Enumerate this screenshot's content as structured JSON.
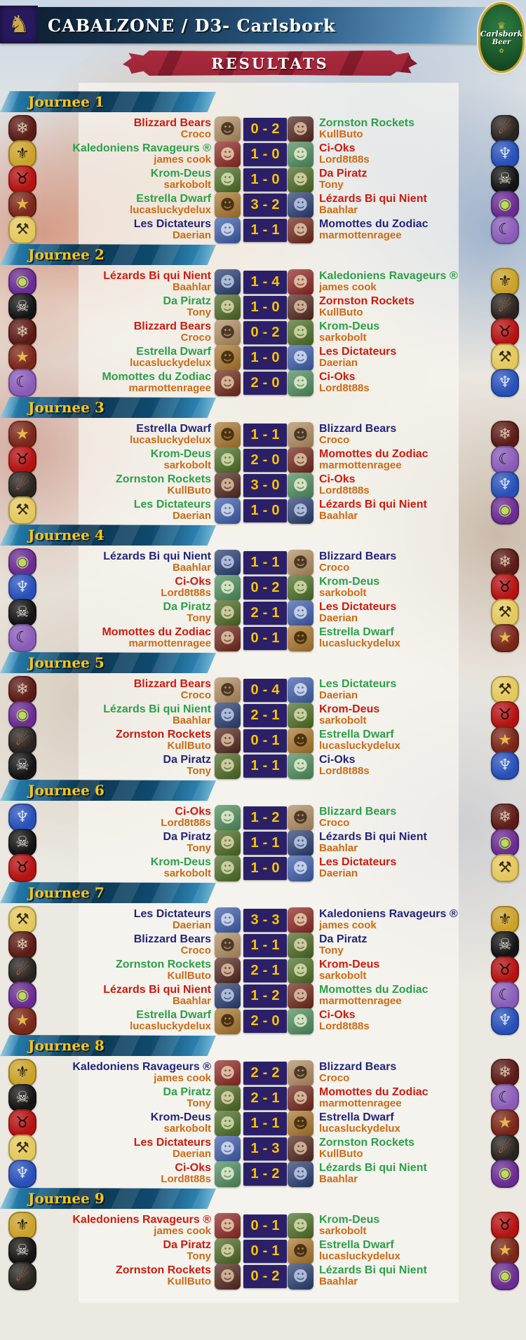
{
  "header": {
    "title": "CABALZONE / D3- Carlsbork",
    "results_banner": "RESULTATS"
  },
  "sponsor": {
    "name": "Carlsbork",
    "product": "Beer"
  },
  "labels": {
    "score_separator": "-"
  },
  "icons": {
    "league_logo_glyph": "♞",
    "crown_glyph": "♛",
    "hop_glyph": "✿",
    "portrait_glyph": "☻"
  },
  "colors": {
    "winner_text": "#2ca04a",
    "loser_text": "#cf1a0e",
    "draw_text": "#24247a",
    "coach_text": "#cf6a14",
    "score_box_bg": "#2b2068",
    "score_text": "#fcc400",
    "round_banner_text": "#fcc412",
    "results_ribbon_bg": "#a72b3d"
  },
  "teams": {
    "Blizzard Bears": {
      "logo_icon": "bear-icon",
      "logo_glyph": "❄",
      "logo_bg": "#5c1a16",
      "logo_fg": "#d8c3a8",
      "portrait_bg": "#b08a5e",
      "portrait_fg": "#3a2a18"
    },
    "Kaledoniens Ravageurs ®": {
      "logo_icon": "hawk-icon",
      "logo_glyph": "⚜",
      "logo_bg": "#caa22a",
      "logo_fg": "#2a1f08",
      "portrait_bg": "#8a2420",
      "portrait_fg": "#e8d0b0"
    },
    "Krom-Deus": {
      "logo_icon": "bull-skull-icon",
      "logo_glyph": "♉",
      "logo_bg": "#b51212",
      "logo_fg": "#1a0a0a",
      "portrait_bg": "#4a6b22",
      "portrait_fg": "#d8e0b0"
    },
    "Estrella Dwarf": {
      "logo_icon": "star-crest-icon",
      "logo_glyph": "★",
      "logo_bg": "#7a2618",
      "logo_fg": "#e8b84a",
      "portrait_bg": "#a8742a",
      "portrait_fg": "#3a2408"
    },
    "Les Dictateurs": {
      "logo_icon": "crossed-keys-icon",
      "logo_glyph": "⚒",
      "logo_bg": "#e3c85e",
      "logo_fg": "#3a2c08",
      "portrait_bg": "#3a5aa8",
      "portrait_fg": "#d8e0f0"
    },
    "Zornston Rockets": {
      "logo_icon": "rocket-ball-icon",
      "logo_glyph": "☄",
      "logo_bg": "#2a2420",
      "logo_fg": "#d86a1c",
      "portrait_bg": "#50241c",
      "portrait_fg": "#e0c0a0"
    },
    "Ci-Oks": {
      "logo_icon": "blue-dragon-icon",
      "logo_glyph": "♆",
      "logo_bg": "#2850b8",
      "logo_fg": "#cfe2ff",
      "portrait_bg": "#4a8a5a",
      "portrait_fg": "#e8f0d0"
    },
    "Da Piratz": {
      "logo_icon": "pirate-skull-icon",
      "logo_glyph": "☠",
      "logo_bg": "#141414",
      "logo_fg": "#e8e4d8",
      "portrait_bg": "#49661e",
      "portrait_fg": "#e0d8b0"
    },
    "Lézards Bi qui Nient": {
      "logo_icon": "eye-icon",
      "logo_glyph": "◉",
      "logo_bg": "#6a2c92",
      "logo_fg": "#b8e04a",
      "portrait_bg": "#253a6e",
      "portrait_fg": "#c0cde8"
    },
    "Momottes du Zodiac": {
      "logo_icon": "bat-icon",
      "logo_glyph": "☾",
      "logo_bg": "#8a5cb8",
      "logo_fg": "#201028",
      "portrait_bg": "#6e2418",
      "portrait_fg": "#e0c8a8"
    }
  },
  "rounds": [
    {
      "label": "Journee 1",
      "matches": [
        {
          "home": "Blizzard Bears",
          "home_coach": "Croco",
          "home_score": 0,
          "away_score": 2,
          "away": "Zornston Rockets",
          "away_coach": "KullButo"
        },
        {
          "home": "Kaledoniens Ravageurs ®",
          "home_coach": "james cook",
          "home_score": 1,
          "away_score": 0,
          "away": "Ci-Oks",
          "away_coach": "Lord8t88s"
        },
        {
          "home": "Krom-Deus",
          "home_coach": "sarkobolt",
          "home_score": 1,
          "away_score": 0,
          "away": "Da Piratz",
          "away_coach": "Tony"
        },
        {
          "home": "Estrella Dwarf",
          "home_coach": "lucasluckydelux",
          "home_score": 3,
          "away_score": 2,
          "away": "Lézards Bi qui Nient",
          "away_coach": "Baahlar"
        },
        {
          "home": "Les Dictateurs",
          "home_coach": "Daerian",
          "home_score": 1,
          "away_score": 1,
          "away": "Momottes du Zodiac",
          "away_coach": "marmottenragee"
        }
      ]
    },
    {
      "label": "Journee 2",
      "matches": [
        {
          "home": "Lézards Bi qui Nient",
          "home_coach": "Baahlar",
          "home_score": 1,
          "away_score": 4,
          "away": "Kaledoniens Ravageurs ®",
          "away_coach": "james cook"
        },
        {
          "home": "Da Piratz",
          "home_coach": "Tony",
          "home_score": 1,
          "away_score": 0,
          "away": "Zornston Rockets",
          "away_coach": "KullButo"
        },
        {
          "home": "Blizzard Bears",
          "home_coach": "Croco",
          "home_score": 0,
          "away_score": 2,
          "away": "Krom-Deus",
          "away_coach": "sarkobolt"
        },
        {
          "home": "Estrella Dwarf",
          "home_coach": "lucasluckydelux",
          "home_score": 1,
          "away_score": 0,
          "away": "Les Dictateurs",
          "away_coach": "Daerian"
        },
        {
          "home": "Momottes du Zodiac",
          "home_coach": "marmottenragee",
          "home_score": 2,
          "away_score": 0,
          "away": "Ci-Oks",
          "away_coach": "Lord8t88s"
        }
      ]
    },
    {
      "label": "Journee 3",
      "matches": [
        {
          "home": "Estrella Dwarf",
          "home_coach": "lucasluckydelux",
          "home_score": 1,
          "away_score": 1,
          "away": "Blizzard Bears",
          "away_coach": "Croco"
        },
        {
          "home": "Krom-Deus",
          "home_coach": "sarkobolt",
          "home_score": 2,
          "away_score": 0,
          "away": "Momottes du Zodiac",
          "away_coach": "marmottenragee"
        },
        {
          "home": "Zornston Rockets",
          "home_coach": "KullButo",
          "home_score": 3,
          "away_score": 0,
          "away": "Ci-Oks",
          "away_coach": "Lord8t88s"
        },
        {
          "home": "Les Dictateurs",
          "home_coach": "Daerian",
          "home_score": 1,
          "away_score": 0,
          "away": "Lézards Bi qui Nient",
          "away_coach": "Baahlar"
        }
      ]
    },
    {
      "label": "Journee 4",
      "matches": [
        {
          "home": "Lézards Bi qui Nient",
          "home_coach": "Baahlar",
          "home_score": 1,
          "away_score": 1,
          "away": "Blizzard Bears",
          "away_coach": "Croco"
        },
        {
          "home": "Ci-Oks",
          "home_coach": "Lord8t88s",
          "home_score": 0,
          "away_score": 2,
          "away": "Krom-Deus",
          "away_coach": "sarkobolt"
        },
        {
          "home": "Da Piratz",
          "home_coach": "Tony",
          "home_score": 2,
          "away_score": 1,
          "away": "Les Dictateurs",
          "away_coach": "Daerian"
        },
        {
          "home": "Momottes du Zodiac",
          "home_coach": "marmottenragee",
          "home_score": 0,
          "away_score": 1,
          "away": "Estrella Dwarf",
          "away_coach": "lucasluckydelux"
        }
      ]
    },
    {
      "label": "Journee 5",
      "matches": [
        {
          "home": "Blizzard Bears",
          "home_coach": "Croco",
          "home_score": 0,
          "away_score": 4,
          "away": "Les Dictateurs",
          "away_coach": "Daerian"
        },
        {
          "home": "Lézards Bi qui Nient",
          "home_coach": "Baahlar",
          "home_score": 2,
          "away_score": 1,
          "away": "Krom-Deus",
          "away_coach": "sarkobolt"
        },
        {
          "home": "Zornston Rockets",
          "home_coach": "KullButo",
          "home_score": 0,
          "away_score": 1,
          "away": "Estrella Dwarf",
          "away_coach": "lucasluckydelux"
        },
        {
          "home": "Da Piratz",
          "home_coach": "Tony",
          "home_score": 1,
          "away_score": 1,
          "away": "Ci-Oks",
          "away_coach": "Lord8t88s"
        }
      ]
    },
    {
      "label": "Journee 6",
      "matches": [
        {
          "home": "Ci-Oks",
          "home_coach": "Lord8t88s",
          "home_score": 1,
          "away_score": 2,
          "away": "Blizzard Bears",
          "away_coach": "Croco"
        },
        {
          "home": "Da Piratz",
          "home_coach": "Tony",
          "home_score": 1,
          "away_score": 1,
          "away": "Lézards Bi qui Nient",
          "away_coach": "Baahlar"
        },
        {
          "home": "Krom-Deus",
          "home_coach": "sarkobolt",
          "home_score": 1,
          "away_score": 0,
          "away": "Les Dictateurs",
          "away_coach": "Daerian"
        }
      ]
    },
    {
      "label": "Journee 7",
      "matches": [
        {
          "home": "Les Dictateurs",
          "home_coach": "Daerian",
          "home_score": 3,
          "away_score": 3,
          "away": "Kaledoniens Ravageurs ®",
          "away_coach": "james cook"
        },
        {
          "home": "Blizzard Bears",
          "home_coach": "Croco",
          "home_score": 1,
          "away_score": 1,
          "away": "Da Piratz",
          "away_coach": "Tony"
        },
        {
          "home": "Zornston Rockets",
          "home_coach": "KullButo",
          "home_score": 2,
          "away_score": 1,
          "away": "Krom-Deus",
          "away_coach": "sarkobolt"
        },
        {
          "home": "Lézards Bi qui Nient",
          "home_coach": "Baahlar",
          "home_score": 1,
          "away_score": 2,
          "away": "Momottes du Zodiac",
          "away_coach": "marmottenragee"
        },
        {
          "home": "Estrella Dwarf",
          "home_coach": "lucasluckydelux",
          "home_score": 2,
          "away_score": 0,
          "away": "Ci-Oks",
          "away_coach": "Lord8t88s"
        }
      ]
    },
    {
      "label": "Journee 8",
      "matches": [
        {
          "home": "Kaledoniens Ravageurs ®",
          "home_coach": "james cook",
          "home_score": 2,
          "away_score": 2,
          "away": "Blizzard Bears",
          "away_coach": "Croco"
        },
        {
          "home": "Da Piratz",
          "home_coach": "Tony",
          "home_score": 2,
          "away_score": 1,
          "away": "Momottes du Zodiac",
          "away_coach": "marmottenragee"
        },
        {
          "home": "Krom-Deus",
          "home_coach": "sarkobolt",
          "home_score": 1,
          "away_score": 1,
          "away": "Estrella Dwarf",
          "away_coach": "lucasluckydelux"
        },
        {
          "home": "Les Dictateurs",
          "home_coach": "Daerian",
          "home_score": 1,
          "away_score": 3,
          "away": "Zornston Rockets",
          "away_coach": "KullButo"
        },
        {
          "home": "Ci-Oks",
          "home_coach": "Lord8t88s",
          "home_score": 1,
          "away_score": 2,
          "away": "Lézards Bi qui Nient",
          "away_coach": "Baahlar"
        }
      ]
    },
    {
      "label": "Journee 9",
      "matches": [
        {
          "home": "Kaledoniens Ravageurs ®",
          "home_coach": "james cook",
          "home_score": 0,
          "away_score": 1,
          "away": "Krom-Deus",
          "away_coach": "sarkobolt"
        },
        {
          "home": "Da Piratz",
          "home_coach": "Tony",
          "home_score": 0,
          "away_score": 1,
          "away": "Estrella Dwarf",
          "away_coach": "lucasluckydelux"
        },
        {
          "home": "Zornston Rockets",
          "home_coach": "KullButo",
          "home_score": 0,
          "away_score": 2,
          "away": "Lézards Bi qui Nient",
          "away_coach": "Baahlar"
        }
      ]
    }
  ]
}
